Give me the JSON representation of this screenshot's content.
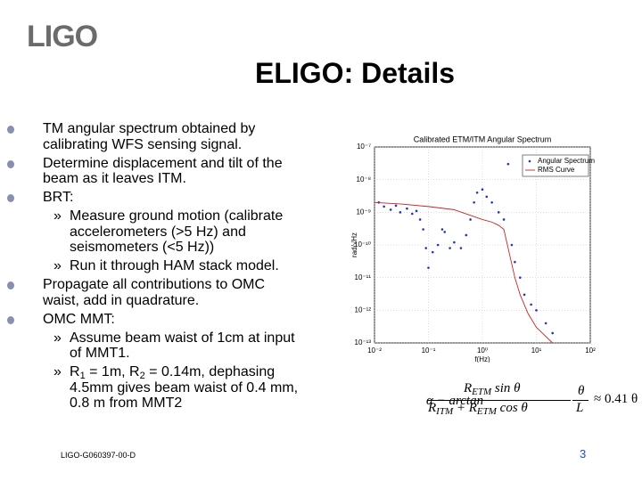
{
  "logo": "LIGO",
  "title": "ELIGO: Details",
  "bullets": [
    {
      "lines": [
        "TM angular spectrum obtained by",
        "calibrating WFS sensing signal."
      ]
    },
    {
      "lines": [
        "Determine displacement and tilt of the",
        "beam as it leaves ITM."
      ]
    },
    {
      "lines": [
        "BRT:"
      ],
      "sub": [
        {
          "lines": [
            "Measure ground motion (calibrate",
            "accelerometers (>5 Hz) and",
            "seismometers (<5 Hz))"
          ]
        },
        {
          "lines": [
            "Run it through HAM stack model."
          ]
        }
      ]
    },
    {
      "lines": [
        "Propagate all contributions to OMC",
        "waist, add in quadrature."
      ]
    },
    {
      "lines": [
        "OMC MMT:"
      ],
      "sub": [
        {
          "lines": [
            "Assume beam waist of 1cm at input",
            "of MMT1."
          ]
        },
        {
          "lines": [
            [
              "R",
              "1",
              " = 1m, R",
              "2",
              " = 0.14m, dephasing"
            ],
            "4.5mm gives beam waist of 0.4 mm,",
            "0.8 m from MMT2"
          ]
        }
      ]
    }
  ],
  "sub_marker": "»",
  "equation": {
    "prefix": "α − arctan",
    "num": [
      "R",
      "ETM",
      " sin θ"
    ],
    "den": [
      "R",
      "ITM",
      " + R",
      "ETM",
      " cos θ"
    ],
    "frac2_num": "θ",
    "frac2_den": "L",
    "result": "≈ 0.41 θ"
  },
  "footer": "LIGO-G060397-00-D",
  "page_number": "3",
  "chart_data": {
    "type": "scatter",
    "title": "Calibrated ETM/ITM Angular Spectrum",
    "x_label": "f(Hz)",
    "y_label": "rad/√Hz",
    "log_x": true,
    "log_y": true,
    "grid": true,
    "legend": "upper right",
    "xlim": [
      0.01,
      100
    ],
    "ylim": [
      1e-13,
      1e-07
    ],
    "xticks": [
      {
        "value": 0.01,
        "label": "10⁻²"
      },
      {
        "value": 0.1,
        "label": "10⁻¹"
      },
      {
        "value": 1,
        "label": "10⁰"
      },
      {
        "value": 10,
        "label": "10¹"
      },
      {
        "value": 100,
        "label": "10²"
      }
    ],
    "yticks": [
      {
        "value": 1e-13,
        "label": "10⁻¹³"
      },
      {
        "value": 1e-12,
        "label": "10⁻¹²"
      },
      {
        "value": 1e-11,
        "label": "10⁻¹¹"
      },
      {
        "value": 1e-10,
        "label": "10⁻¹⁰"
      },
      {
        "value": 1e-09,
        "label": "10⁻⁹"
      },
      {
        "value": 1e-08,
        "label": "10⁻⁸"
      },
      {
        "value": 1e-07,
        "label": "10⁻⁷"
      }
    ],
    "series": [
      {
        "name": "Angular Spectrum",
        "color": "#2233cc",
        "style": "points",
        "x": [
          0.012,
          0.015,
          0.02,
          0.025,
          0.03,
          0.04,
          0.05,
          0.06,
          0.07,
          0.08,
          0.09,
          0.1,
          0.12,
          0.15,
          0.18,
          0.2,
          0.25,
          0.3,
          0.4,
          0.5,
          0.6,
          0.7,
          0.8,
          1,
          1.2,
          1.5,
          2,
          2.5,
          3,
          3.5,
          4,
          5,
          6,
          8,
          10,
          15,
          20
        ],
        "values": [
          2e-09,
          1.5e-09,
          1.2e-09,
          1.6e-09,
          1e-09,
          1.3e-09,
          9e-10,
          1.1e-09,
          6e-10,
          3e-10,
          8e-11,
          2e-11,
          6e-11,
          1e-10,
          3e-10,
          2.5e-10,
          8e-11,
          1.2e-10,
          8e-11,
          2e-10,
          6e-10,
          2e-09,
          4e-09,
          5e-09,
          3e-09,
          2e-09,
          1e-09,
          6e-10,
          3e-08,
          1e-10,
          3e-11,
          1e-11,
          3e-12,
          1.5e-12,
          1e-12,
          4e-13,
          2e-13
        ]
      },
      {
        "name": "RMS Curve",
        "color": "#cc2222",
        "style": "line",
        "x": [
          0.01,
          0.03,
          0.1,
          0.3,
          1,
          1.5,
          2,
          2.5,
          3,
          4,
          5,
          7,
          10,
          20
        ],
        "values": [
          2e-09,
          1.8e-09,
          1.5e-09,
          1.2e-09,
          6e-10,
          5e-10,
          4e-10,
          3e-10,
          8e-11,
          1e-11,
          3e-12,
          8e-13,
          3e-13,
          1e-13
        ]
      }
    ]
  }
}
